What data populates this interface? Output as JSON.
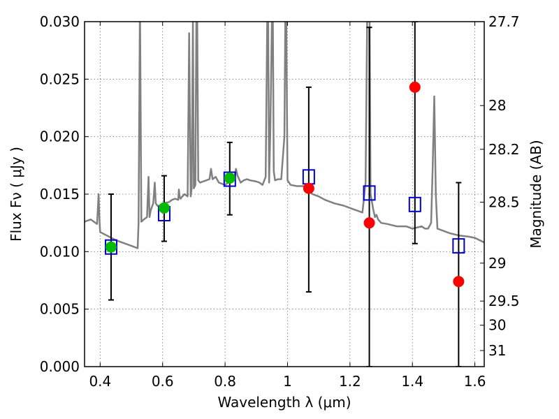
{
  "chart_data": {
    "type": "scatter",
    "title": "",
    "xlabel": "Wavelength  λ (μm)",
    "ylabel": "Flux  Fν  ( μJy )",
    "ylabel_right": "Magnitude (AB)",
    "xlim": [
      0.35,
      1.63
    ],
    "ylim": [
      0.0,
      0.03
    ],
    "grid": true,
    "x_ticks": [
      0.4,
      0.6,
      0.8,
      1.0,
      1.2,
      1.4,
      1.6
    ],
    "x_tick_labels": [
      "0.4",
      "0.6",
      "0.8",
      "1",
      "1.2",
      "1.4",
      "1.6"
    ],
    "y_ticks": [
      0.0,
      0.005,
      0.01,
      0.015,
      0.02,
      0.025,
      0.03
    ],
    "y_tick_labels": [
      "0.000",
      "0.005",
      "0.010",
      "0.015",
      "0.020",
      "0.025",
      "0.030"
    ],
    "right_ticks": [
      {
        "label": "27.7",
        "flux": 0.03
      },
      {
        "label": "28",
        "flux": 0.0227
      },
      {
        "label": "28.2",
        "flux": 0.0189
      },
      {
        "label": "28.5",
        "flux": 0.0143
      },
      {
        "label": "29",
        "flux": 0.009
      },
      {
        "label": "29.5",
        "flux": 0.0057
      },
      {
        "label": "30",
        "flux": 0.0036
      },
      {
        "label": "31",
        "flux": 0.0014
      }
    ],
    "series": [
      {
        "marker": "square-open",
        "color": "#0000cc",
        "x": [
          0.435,
          0.605,
          0.815,
          1.068,
          1.262,
          1.408,
          1.548
        ],
        "y": [
          0.0104,
          0.0133,
          0.0163,
          0.0165,
          0.0151,
          0.0141,
          0.0105
        ]
      },
      {
        "marker": "circle",
        "color": "#ff0000",
        "x": [
          1.068,
          1.262,
          1.408,
          1.548
        ],
        "y": [
          0.0155,
          0.0125,
          0.0243,
          0.0074
        ]
      },
      {
        "marker": "circle",
        "color": "#00bb00",
        "x": [
          0.435,
          0.605,
          0.815
        ],
        "y": [
          0.0104,
          0.0138,
          0.0164
        ]
      }
    ],
    "errorbars": [
      {
        "x": 0.435,
        "low": 0.0058,
        "high": 0.015
      },
      {
        "x": 0.605,
        "low": 0.0109,
        "high": 0.0166
      },
      {
        "x": 0.815,
        "low": 0.0132,
        "high": 0.0195
      },
      {
        "x": 1.068,
        "low": 0.0065,
        "high": 0.0243
      },
      {
        "x": 1.262,
        "low": 0.0,
        "high": 0.0295
      },
      {
        "x": 1.408,
        "low": 0.0107,
        "high": 0.03
      },
      {
        "x": 1.548,
        "low": 0.0,
        "high": 0.016
      }
    ],
    "model_spectrum": {
      "color": "#808080",
      "x": [
        0.35,
        0.37,
        0.39,
        0.395,
        0.398,
        0.4,
        0.45,
        0.5,
        0.52,
        0.523,
        0.527,
        0.528,
        0.532,
        0.54,
        0.55,
        0.555,
        0.558,
        0.562,
        0.57,
        0.575,
        0.578,
        0.583,
        0.59,
        0.6,
        0.62,
        0.63,
        0.64,
        0.65,
        0.652,
        0.655,
        0.658,
        0.66,
        0.67,
        0.68,
        0.685,
        0.69,
        0.693,
        0.697,
        0.7,
        0.705,
        0.708,
        0.711,
        0.714,
        0.72,
        0.74,
        0.75,
        0.755,
        0.76,
        0.77,
        0.78,
        0.8,
        0.81,
        0.82,
        0.83,
        0.835,
        0.84,
        0.85,
        0.86,
        0.87,
        0.88,
        0.9,
        0.91,
        0.92,
        0.93,
        0.935,
        0.938,
        0.941,
        0.945,
        0.95,
        0.953,
        0.956,
        0.96,
        0.97,
        0.98,
        0.99,
        0.993,
        0.996,
        1.0,
        1.01,
        1.03,
        1.05,
        1.06,
        1.08,
        1.1,
        1.12,
        1.15,
        1.18,
        1.2,
        1.22,
        1.24,
        1.25,
        1.255,
        1.26,
        1.263,
        1.266,
        1.275,
        1.28,
        1.285,
        1.29,
        1.3,
        1.32,
        1.35,
        1.38,
        1.4,
        1.43,
        1.44,
        1.45,
        1.46,
        1.465,
        1.47,
        1.475,
        1.48,
        1.5,
        1.52,
        1.55,
        1.58,
        1.6,
        1.63
      ],
      "y": [
        0.0126,
        0.0128,
        0.0124,
        0.015,
        0.0126,
        0.0117,
        0.011,
        0.0105,
        0.0103,
        0.0125,
        0.03,
        0.03,
        0.0126,
        0.0128,
        0.013,
        0.0165,
        0.013,
        0.0136,
        0.0142,
        0.016,
        0.0142,
        0.014,
        0.014,
        0.0142,
        0.0143,
        0.0145,
        0.0146,
        0.0145,
        0.0154,
        0.0147,
        0.0146,
        0.0147,
        0.015,
        0.0148,
        0.029,
        0.0148,
        0.0155,
        0.03,
        0.0155,
        0.0158,
        0.03,
        0.03,
        0.0162,
        0.016,
        0.0162,
        0.0163,
        0.0172,
        0.0163,
        0.0165,
        0.016,
        0.0158,
        0.016,
        0.0164,
        0.0165,
        0.0172,
        0.0166,
        0.016,
        0.0162,
        0.0163,
        0.0162,
        0.0161,
        0.016,
        0.0158,
        0.0165,
        0.03,
        0.03,
        0.016,
        0.0205,
        0.03,
        0.03,
        0.017,
        0.0162,
        0.0163,
        0.0163,
        0.02,
        0.03,
        0.03,
        0.0162,
        0.0158,
        0.0157,
        0.0157,
        0.0155,
        0.015,
        0.0148,
        0.0145,
        0.0142,
        0.014,
        0.0138,
        0.0136,
        0.0134,
        0.016,
        0.03,
        0.03,
        0.03,
        0.015,
        0.0136,
        0.013,
        0.0132,
        0.0128,
        0.0125,
        0.0124,
        0.0122,
        0.0122,
        0.012,
        0.0122,
        0.012,
        0.012,
        0.0125,
        0.0175,
        0.0235,
        0.015,
        0.012,
        0.0118,
        0.0116,
        0.0114,
        0.0113,
        0.0112,
        0.0108
      ]
    }
  }
}
